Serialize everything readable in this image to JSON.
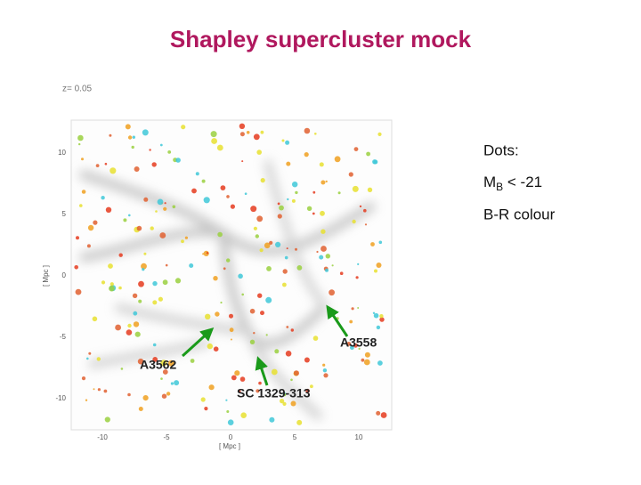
{
  "header": {
    "title": "Shapley supercluster mock"
  },
  "figure": {
    "redshift_label": "z= 0.05",
    "x_ticks": [
      "-10",
      "-5",
      "0",
      "5",
      "10"
    ],
    "y_ticks": [
      "10",
      "5",
      "0",
      "-5",
      "-10"
    ],
    "x_axis_label": "[ Mpc ]",
    "y_axis_label": "[ Mpc ]",
    "annotations": [
      "A3558",
      "A3562",
      "SC 1329-313"
    ]
  },
  "legend": {
    "heading": "Dots:",
    "magnitude_symbol": "M",
    "magnitude_subscript": "B",
    "magnitude_cut": " < -21",
    "colour": "B-R colour"
  }
}
